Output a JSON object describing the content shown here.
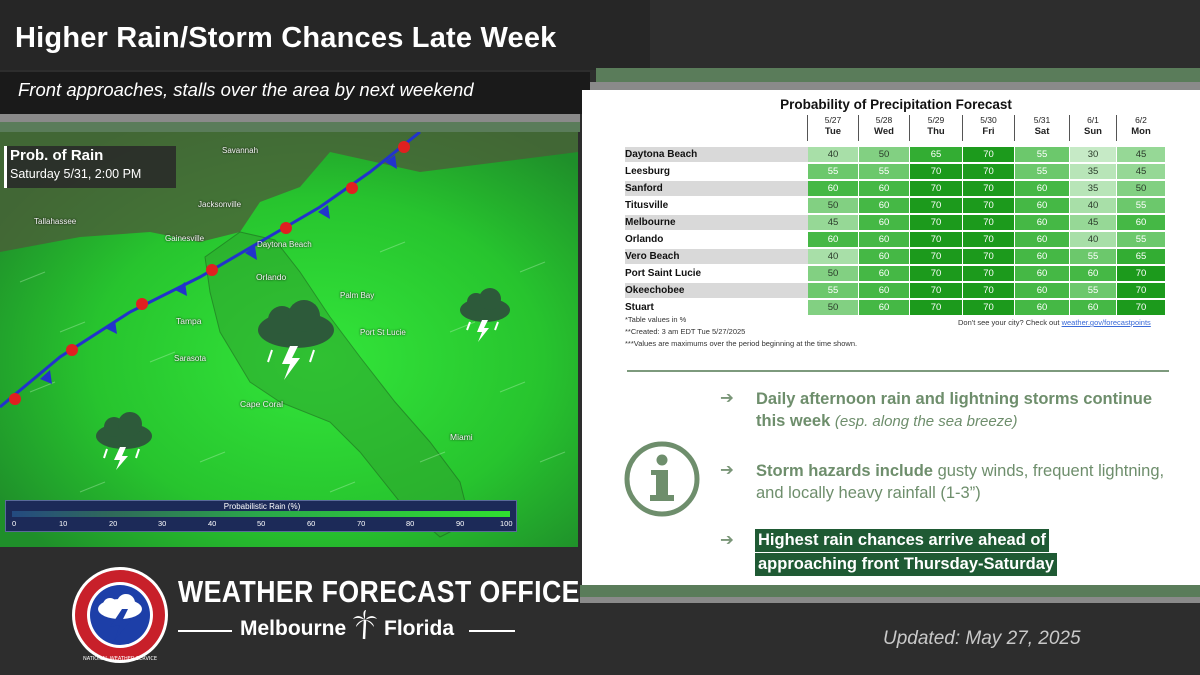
{
  "header": {
    "title": "Higher Rain/Storm Chances Late Week",
    "subtitle": "Front approaches, stalls over the area by next weekend"
  },
  "map": {
    "panel_title": "Prob. of Rain",
    "panel_subtitle": "Saturday 5/31, 2:00 PM",
    "cities": [
      "Savannah",
      "Jacksonville",
      "Tallahassee",
      "Gainesville",
      "Daytona Beach",
      "Orlando",
      "Palm Bay",
      "Tampa",
      "Port St Lucie",
      "Sarasota",
      "Cape Coral",
      "Miami"
    ],
    "legend": {
      "title": "Probabilistic Rain (%)",
      "ticks": [
        "0",
        "10",
        "20",
        "30",
        "40",
        "50",
        "60",
        "70",
        "80",
        "90",
        "100"
      ]
    },
    "icons": [
      "storm-cloud-icon",
      "storm-cloud-icon",
      "storm-cloud-icon"
    ]
  },
  "table": {
    "title": "Probability of Precipitation Forecast",
    "columns": [
      {
        "date": "5/27",
        "day": "Tue"
      },
      {
        "date": "5/28",
        "day": "Wed"
      },
      {
        "date": "5/29",
        "day": "Thu"
      },
      {
        "date": "5/30",
        "day": "Fri"
      },
      {
        "date": "5/31",
        "day": "Sat"
      },
      {
        "date": "6/1",
        "day": "Sun"
      },
      {
        "date": "6/2",
        "day": "Mon"
      }
    ],
    "rows": [
      {
        "city": "Daytona Beach",
        "values": [
          "40",
          "50",
          "65",
          "70",
          "55",
          "30",
          "45"
        ]
      },
      {
        "city": "Leesburg",
        "values": [
          "55",
          "55",
          "70",
          "70",
          "55",
          "35",
          "45"
        ]
      },
      {
        "city": "Sanford",
        "values": [
          "60",
          "60",
          "70",
          "70",
          "60",
          "35",
          "50"
        ]
      },
      {
        "city": "Titusville",
        "values": [
          "50",
          "60",
          "70",
          "70",
          "60",
          "40",
          "55"
        ]
      },
      {
        "city": "Melbourne",
        "values": [
          "45",
          "60",
          "70",
          "70",
          "60",
          "45",
          "60"
        ]
      },
      {
        "city": "Orlando",
        "values": [
          "60",
          "60",
          "70",
          "70",
          "60",
          "40",
          "55"
        ]
      },
      {
        "city": "Vero Beach",
        "values": [
          "40",
          "60",
          "70",
          "70",
          "60",
          "55",
          "65"
        ]
      },
      {
        "city": "Port Saint Lucie",
        "values": [
          "50",
          "60",
          "70",
          "70",
          "60",
          "60",
          "70"
        ]
      },
      {
        "city": "Okeechobee",
        "values": [
          "55",
          "60",
          "70",
          "70",
          "60",
          "55",
          "70"
        ]
      },
      {
        "city": "Stuart",
        "values": [
          "50",
          "60",
          "70",
          "70",
          "60",
          "60",
          "70"
        ]
      }
    ],
    "footnotes": [
      "*Table values in %",
      "**Created: 3 am EDT Tue 5/27/2025",
      "***Values are maximums over the period beginning at the time shown."
    ],
    "city_prompt": "Don't see your city? Check out",
    "city_link": "weather.gov/forecastpoints"
  },
  "bullets": {
    "b1_main": "Daily afternoon rain and lightning storms continue this week",
    "b1_note": "(esp. along the sea breeze)",
    "b2_bold": "Storm hazards include",
    "b2_rest": "gusty winds, frequent lightning, and locally heavy rainfall (1-3”)",
    "b3_line1": "Highest rain chances arrive ahead of",
    "b3_line2": "approaching front Thursday-Saturday"
  },
  "footer": {
    "office": "WEATHER FORECAST OFFICE",
    "city": "Melbourne",
    "state": "Florida",
    "updated": "Updated: May 27, 2025",
    "logo_ring_text": "NATIONAL WEATHER SERVICE"
  },
  "colors": {
    "accent_green": "#5a7c5a",
    "text_green": "#6e8e6c",
    "highlight_green": "#1f5a34",
    "background_dark": "#2d2d2d"
  }
}
